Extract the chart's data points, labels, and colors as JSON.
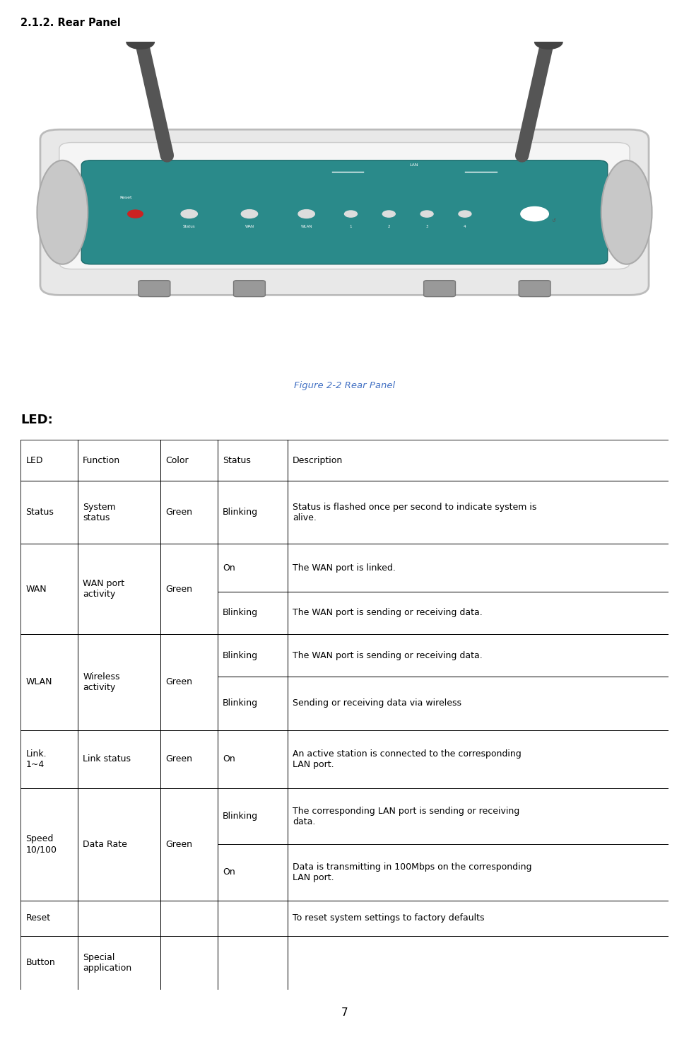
{
  "title": "2.1.2. Rear Panel",
  "figure_caption": "Figure 2-2 Rear Panel",
  "led_label": "LED:",
  "page_number": "7",
  "caption_color": "#4472C4",
  "fig_width": 9.75,
  "fig_height": 14.81,
  "col_props": [
    0.088,
    0.128,
    0.088,
    0.108,
    0.588
  ],
  "header": [
    "LED",
    "Function",
    "Color",
    "Status",
    "Description"
  ],
  "rows": [
    {
      "led": "Status",
      "led_rows": 1,
      "func": "System\nstatus",
      "func_rows": 1,
      "color": "Green",
      "color_rows": 1,
      "sub": [
        [
          "Blinking",
          "Status is flashed once per second to indicate system is\nalive."
        ]
      ]
    },
    {
      "led": "WAN",
      "led_rows": 2,
      "func": "WAN port\nactivity",
      "func_rows": 2,
      "color": "Green",
      "color_rows": 2,
      "sub": [
        [
          "On",
          "The WAN port is linked."
        ],
        [
          "Blinking",
          "The WAN port is sending or receiving data."
        ]
      ]
    },
    {
      "led": "WLAN",
      "led_rows": 2,
      "func": "Wireless\nactivity",
      "func_rows": 2,
      "color": "Green",
      "color_rows": 2,
      "sub": [
        [
          "Blinking",
          "The WAN port is sending or receiving data."
        ],
        [
          "Blinking",
          "Sending or receiving data via wireless"
        ]
      ]
    },
    {
      "led": "Link.\n1~4",
      "led_rows": 1,
      "func": "Link status",
      "func_rows": 1,
      "color": "Green",
      "color_rows": 1,
      "sub": [
        [
          "On",
          "An active station is connected to the corresponding\nLAN port."
        ]
      ]
    },
    {
      "led": "Speed\n10/100",
      "led_rows": 2,
      "func": "Data Rate",
      "func_rows": 2,
      "color": "Green",
      "color_rows": 2,
      "sub": [
        [
          "Blinking",
          "The corresponding LAN port is sending or receiving\ndata."
        ],
        [
          "On",
          "Data is transmitting in 100Mbps on the corresponding\nLAN port."
        ]
      ]
    },
    {
      "led": "Reset",
      "led_rows": 1,
      "func": "",
      "func_rows": 1,
      "color": "",
      "color_rows": 1,
      "sub": [
        [
          "",
          "To reset system settings to factory defaults"
        ]
      ]
    },
    {
      "led": "Button",
      "led_rows": 1,
      "func": "Special\napplication",
      "func_rows": 1,
      "color": "",
      "color_rows": 1,
      "sub": [
        [
          "",
          ""
        ]
      ]
    }
  ]
}
